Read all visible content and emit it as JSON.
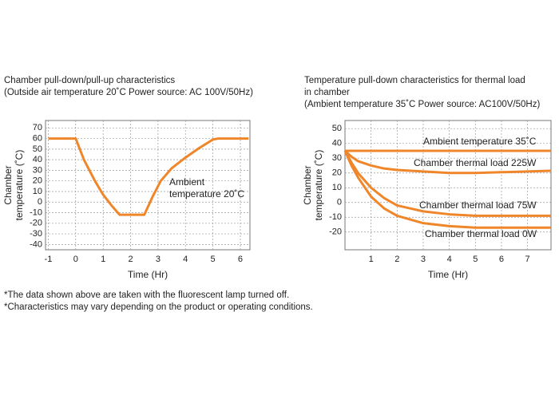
{
  "chart_data": [
    {
      "type": "line",
      "title": "Chamber pull-down/pull-up characteristics",
      "subtitle": "(Outside air temperature 20˚C Power source: AC 100V/50Hz)",
      "xlabel": "Time (Hr)",
      "ylabel": [
        "Chamber",
        "temperature (˚C)"
      ],
      "annotations": [
        "Ambient",
        "temperature 20˚C"
      ],
      "x": [
        -1,
        0,
        0.3,
        0.7,
        1,
        1.3,
        1.6,
        2.5,
        2.8,
        3.1,
        3.5,
        4,
        4.5,
        5,
        5.2,
        6.3
      ],
      "values": [
        60,
        60,
        40,
        20,
        7,
        -3,
        -12,
        -12,
        5,
        20,
        32,
        42,
        51,
        59,
        60,
        60
      ],
      "color": "#f0862a",
      "xlim": [
        -1.1,
        6.35
      ],
      "ylim": [
        -45,
        77
      ],
      "xticks": [
        -1,
        0,
        1,
        2,
        3,
        4,
        5,
        6
      ],
      "yticks": [
        -40,
        -30,
        -20,
        -10,
        0,
        10,
        20,
        30,
        40,
        50,
        60,
        70
      ],
      "grid": true
    },
    {
      "type": "line",
      "title": [
        "Temperature pull-down characteristics for thermal load",
        "in chamber"
      ],
      "subtitle": "(Ambient temperature 35˚C  Power source: AC100V/50Hz)",
      "xlabel": "Time (Hr)",
      "ylabel": [
        "Chamber",
        "temperature (˚C)"
      ],
      "x": [
        0,
        0.25,
        0.5,
        1,
        1.5,
        2,
        3,
        4,
        5,
        6,
        7,
        7.9
      ],
      "series": [
        {
          "name": "Ambient temperature 35˚C",
          "color": "#f0862a",
          "values": [
            35,
            35,
            35,
            35,
            35,
            35,
            35,
            35,
            35,
            35,
            35,
            35
          ]
        },
        {
          "name": "Chamber thermal load 225W",
          "color": "#f0862a",
          "values": [
            35,
            31,
            28,
            25,
            23,
            22,
            21,
            20,
            20,
            20.5,
            21,
            21.5
          ]
        },
        {
          "name": "Chamber thermal load 75W",
          "color": "#f0862a",
          "values": [
            35,
            27,
            20,
            10,
            3,
            -2,
            -6,
            -8,
            -9,
            -9,
            -9,
            -9
          ]
        },
        {
          "name": "Chamber thermal load 0W",
          "color": "#f0862a",
          "values": [
            35,
            25,
            17,
            4,
            -4,
            -9,
            -14,
            -16,
            -17,
            -17,
            -17,
            -17
          ]
        }
      ],
      "xlim": [
        0,
        7.9
      ],
      "ylim": [
        -32,
        55.5
      ],
      "xticks": [
        1,
        2,
        3,
        4,
        5,
        6,
        7
      ],
      "yticks": [
        -20,
        -10,
        0,
        10,
        20,
        30,
        40,
        50
      ],
      "grid": true
    }
  ],
  "notes": [
    "*The data shown above are taken with the fluorescent lamp turned off.",
    "*Characteristics may vary depending on the product or operating conditions."
  ]
}
